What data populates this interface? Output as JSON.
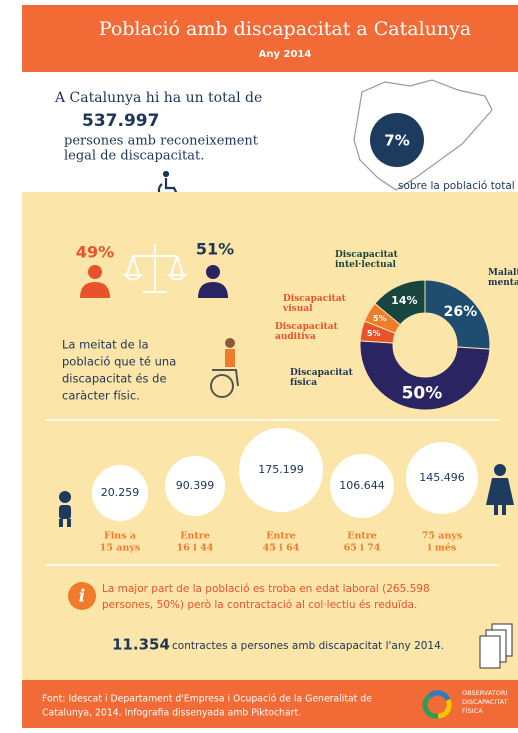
{
  "header": {
    "title": "Població amb discapacitat a Catalunya",
    "subtitle": "Any 2014"
  },
  "total": {
    "intro": "A Catalunya hi ha un total de",
    "number": "537.997",
    "lines": [
      "persones amb reconeixement",
      "legal de discapacitat."
    ],
    "share": "7%",
    "share_note": "sobre la població total"
  },
  "gender": {
    "women": "49%",
    "men": "51%"
  },
  "physical_note": [
    "La meitat de la",
    "població que té una",
    "discapacitat és de",
    "caràcter físic."
  ],
  "chart_data": {
    "type": "donut",
    "categories": [
      "Malaltia mental",
      "Discapacitat física",
      "Discapacitat auditiva",
      "Discapacitat visual",
      "Discapacitat intel·lectual"
    ],
    "values": [
      26,
      50,
      5,
      5,
      14
    ],
    "value_labels": [
      "26%",
      "50%",
      "5%",
      "5%",
      "14%"
    ],
    "colors": [
      "#1e4d70",
      "#2b2462",
      "#e8532b",
      "#f07b2a",
      "#17453f"
    ]
  },
  "ages": [
    {
      "value": "20.259",
      "label": [
        "Fins a",
        "15 anys"
      ]
    },
    {
      "value": "90.399",
      "label": [
        "Entre",
        "16 i 44"
      ]
    },
    {
      "value": "175.199",
      "label": [
        "Entre",
        "45 i 64"
      ]
    },
    {
      "value": "106.644",
      "label": [
        "Entre",
        "65 i 74"
      ]
    },
    {
      "value": "145.496",
      "label": [
        "75 anys",
        "i més"
      ]
    }
  ],
  "info_icon": "i",
  "employment": {
    "note": [
      "La major part de la població es troba en edat laboral (265.598",
      "persones, 50%) però la contractació al col·lectiu és reduïda."
    ],
    "contracts_number": "11.354",
    "contracts_text": "contractes a persones amb discapacitat l'any 2014."
  },
  "footer": {
    "source": [
      "Font: Idescat i Departament d'Empresa i Ocupació de la Generalitat de",
      "Catalunya, 2014. Infografia dissenyada amb Piktochart."
    ],
    "logo": [
      "OBSERVATORI",
      "DISCAPACITAT",
      "FÍSICA"
    ]
  }
}
